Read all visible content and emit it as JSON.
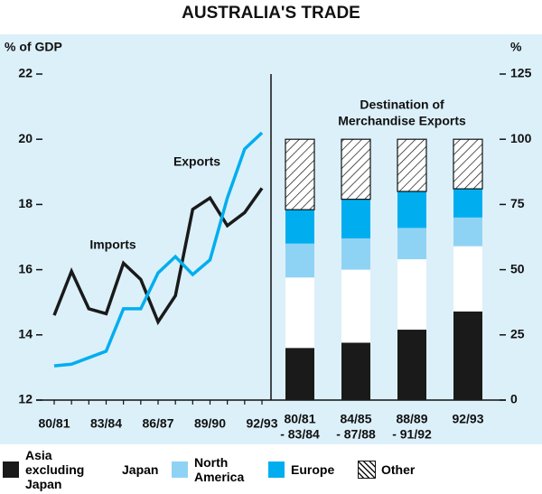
{
  "title": "AUSTRALIA'S TRADE",
  "chart_data": [
    {
      "type": "line",
      "y_label": "% of GDP",
      "categories": [
        "80/81",
        null,
        null,
        "83/84",
        null,
        null,
        "86/87",
        null,
        null,
        "89/90",
        null,
        null,
        "92/93"
      ],
      "series": [
        {
          "name": "Imports",
          "color": "#1a1a1a",
          "values": [
            14.6,
            15.95,
            14.8,
            14.65,
            16.2,
            15.7,
            14.4,
            15.2,
            17.85,
            18.2,
            17.35,
            17.75,
            18.5
          ]
        },
        {
          "name": "Exports",
          "color": "#00aeef",
          "values": [
            13.05,
            13.1,
            13.3,
            13.5,
            14.8,
            14.8,
            15.9,
            16.4,
            15.85,
            16.3,
            18.2,
            19.7,
            20.2
          ]
        }
      ],
      "ylim": [
        12,
        22
      ],
      "yticks": [
        12,
        14,
        16,
        18,
        20,
        22
      ]
    },
    {
      "type": "stacked_bar",
      "y_label": "%",
      "annotation": [
        "Destination of",
        "Merchandise Exports"
      ],
      "categories": [
        [
          "80/81",
          "- 83/84"
        ],
        [
          "84/85",
          "- 87/88"
        ],
        [
          "88/89",
          "- 91/92"
        ],
        [
          "92/93"
        ]
      ],
      "series": [
        {
          "name": "Asia excluding Japan",
          "color": "#1a1a1a",
          "values": [
            20,
            22,
            27,
            34
          ]
        },
        {
          "name": "Japan",
          "color": "#ffffff",
          "values": [
            27,
            28,
            27,
            25
          ]
        },
        {
          "name": "North America",
          "color": "#8fd3f4",
          "values": [
            13,
            12,
            12,
            11
          ]
        },
        {
          "name": "Europe",
          "color": "#00aeef",
          "values": [
            13,
            15,
            14,
            11
          ]
        },
        {
          "name": "Other",
          "color": "#ffffff",
          "pattern": "hatch",
          "values": [
            27,
            23,
            20,
            19
          ]
        }
      ],
      "ylim": [
        0,
        125
      ],
      "yticks": [
        0,
        25,
        50,
        75,
        100,
        125
      ]
    }
  ]
}
